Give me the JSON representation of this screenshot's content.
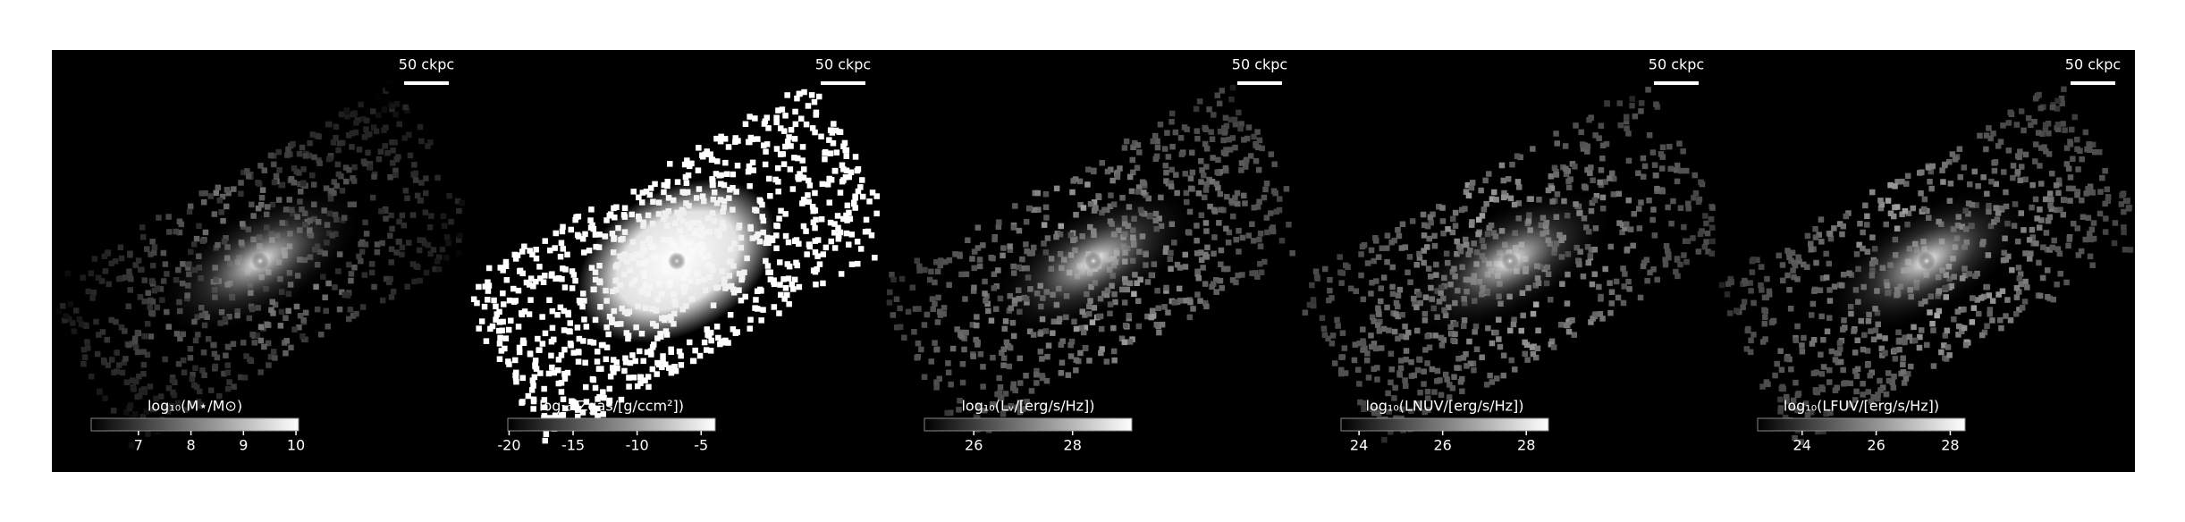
{
  "panels": [
    {
      "scalebar": "50 ckpc",
      "colorbar": {
        "label": "log₁₀(M⋆/M⊙)",
        "lim": [
          6.1,
          10.05
        ],
        "ticks": [
          7,
          8,
          9,
          10
        ]
      }
    },
    {
      "scalebar": "50 ckpc",
      "colorbar": {
        "label": "log₁₀(Zgas/[g/ccm²])",
        "lim": [
          -20.1,
          -3.9
        ],
        "ticks": [
          -20,
          -15,
          -10,
          -5
        ]
      }
    },
    {
      "scalebar": "50 ckpc",
      "colorbar": {
        "label": "log₁₀(Lᵥ/[erg/s/Hz])",
        "lim": [
          25.0,
          29.2
        ],
        "ticks": [
          26,
          28
        ]
      }
    },
    {
      "scalebar": "50 ckpc",
      "colorbar": {
        "label": "log₁₀(LNUV/[erg/s/Hz])",
        "lim": [
          23.57,
          28.53
        ],
        "ticks": [
          24,
          26,
          28
        ]
      }
    },
    {
      "scalebar": "50 ckpc",
      "colorbar": {
        "label": "log₁₀(LFUV/[erg/s/Hz])",
        "lim": [
          22.8,
          28.4
        ],
        "ticks": [
          24,
          26,
          28
        ]
      }
    }
  ]
}
